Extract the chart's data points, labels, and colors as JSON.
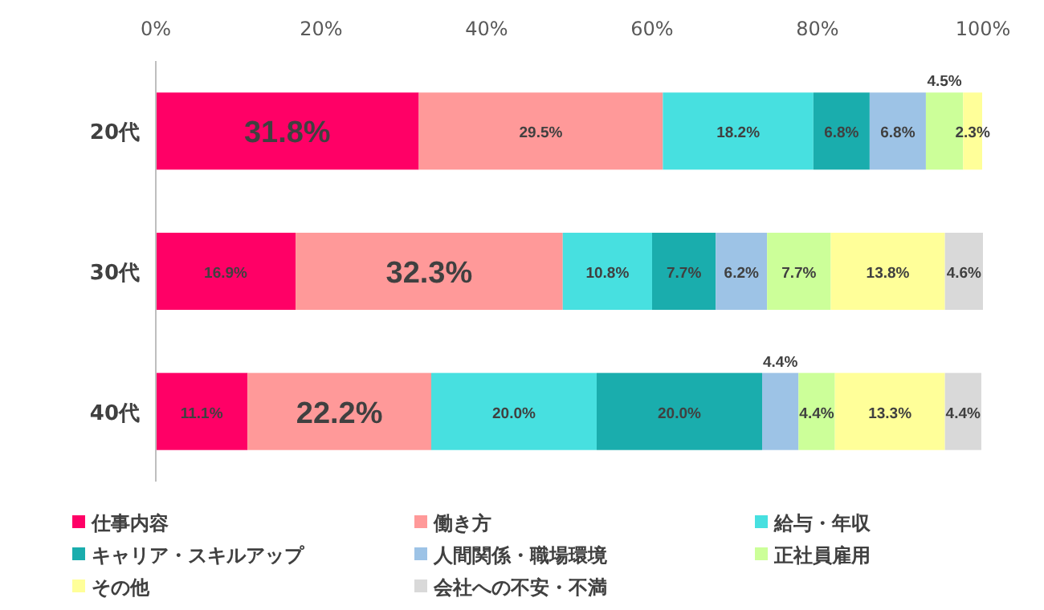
{
  "chart_data": {
    "type": "bar",
    "orientation": "horizontal",
    "stacked": true,
    "legend": "bottom",
    "categories": [
      "20代",
      "30代",
      "40代"
    ],
    "xlim": [
      0,
      100
    ],
    "xticks": [
      {
        "value": 0,
        "label": "0%"
      },
      {
        "value": 20,
        "label": "20%"
      },
      {
        "value": 40,
        "label": "40%"
      },
      {
        "value": 60,
        "label": "60%"
      },
      {
        "value": 80,
        "label": "80%"
      },
      {
        "value": 100,
        "label": "100%"
      }
    ],
    "series": [
      {
        "name": "仕事内容",
        "color": "#ff0066",
        "values": [
          31.8,
          16.9,
          11.1
        ],
        "value_labels": [
          "31.8%",
          "16.9%",
          "11.1%"
        ]
      },
      {
        "name": "働き方",
        "color": "#ff9999",
        "values": [
          29.5,
          32.3,
          22.2
        ],
        "value_labels": [
          "29.5%",
          "32.3%",
          "22.2%"
        ]
      },
      {
        "name": "給与・年収",
        "color": "#47e0e0",
        "values": [
          18.2,
          10.8,
          20.0
        ],
        "value_labels": [
          "18.2%",
          "10.8%",
          "20.0%"
        ]
      },
      {
        "name": "キャリア・スキルアップ",
        "color": "#1aadad",
        "values": [
          6.8,
          7.7,
          20.0
        ],
        "value_labels": [
          "6.8%",
          "7.7%",
          "20.0%"
        ]
      },
      {
        "name": "人間関係・職場環境",
        "color": "#9dc3e6",
        "values": [
          6.8,
          6.2,
          4.4
        ],
        "value_labels": [
          "6.8%",
          "6.2%",
          "4.4%"
        ]
      },
      {
        "name": "正社員雇用",
        "color": "#ccff99",
        "values": [
          4.5,
          7.7,
          4.4
        ],
        "value_labels": [
          "4.5%",
          "7.7%",
          "4.4%"
        ]
      },
      {
        "name": "その他",
        "color": "#ffff99",
        "values": [
          2.3,
          13.8,
          13.3
        ],
        "value_labels": [
          "2.3%",
          "13.8%",
          "13.3%"
        ]
      },
      {
        "name": "会社への不安・不満",
        "color": "#d9d9d9",
        "values": [
          null,
          4.6,
          4.4
        ],
        "value_labels": [
          null,
          "4.6%",
          "4.4%"
        ]
      }
    ]
  }
}
